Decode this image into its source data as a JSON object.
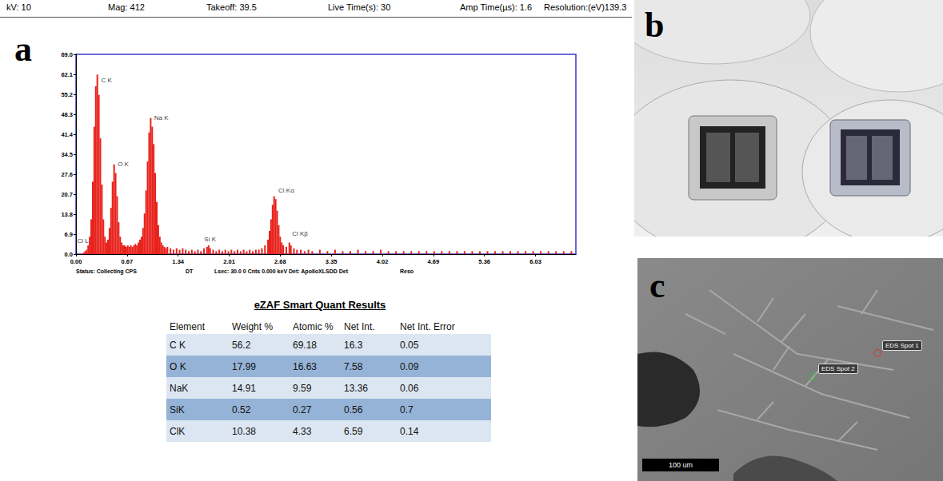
{
  "header": {
    "fields": [
      "kV: 10",
      "Mag: 412",
      "Takeoff: 39.5",
      "Live Time(s): 30",
      "Amp Time(µs): 1.6",
      "Resolution:(eV)139.3"
    ]
  },
  "panel_labels": [
    "a",
    "b",
    "c"
  ],
  "chart_data": {
    "type": "bar",
    "color": "#e8211b",
    "grid": false,
    "x": [
      0.1,
      0.12,
      0.14,
      0.16,
      0.18,
      0.2,
      0.22,
      0.24,
      0.26,
      0.28,
      0.3,
      0.32,
      0.34,
      0.36,
      0.38,
      0.4,
      0.42,
      0.44,
      0.46,
      0.48,
      0.5,
      0.52,
      0.54,
      0.56,
      0.58,
      0.6,
      0.62,
      0.64,
      0.66,
      0.68,
      0.7,
      0.72,
      0.74,
      0.76,
      0.78,
      0.8,
      0.82,
      0.84,
      0.86,
      0.88,
      0.9,
      0.92,
      0.94,
      0.96,
      0.98,
      1.0,
      1.02,
      1.04,
      1.06,
      1.08,
      1.1,
      1.12,
      1.14,
      1.16,
      1.18,
      1.2,
      1.24,
      1.28,
      1.32,
      1.36,
      1.4,
      1.44,
      1.48,
      1.52,
      1.56,
      1.6,
      1.64,
      1.68,
      1.72,
      1.74,
      1.76,
      1.8,
      1.84,
      1.88,
      1.92,
      1.96,
      2.0,
      2.04,
      2.08,
      2.12,
      2.16,
      2.2,
      2.24,
      2.28,
      2.32,
      2.36,
      2.4,
      2.44,
      2.48,
      2.52,
      2.54,
      2.56,
      2.58,
      2.6,
      2.62,
      2.64,
      2.66,
      2.68,
      2.7,
      2.72,
      2.76,
      2.8,
      2.82,
      2.86,
      2.9,
      2.95,
      3.0,
      3.05,
      3.1,
      3.2,
      3.3,
      3.4,
      3.5,
      3.6,
      3.7,
      3.8,
      3.9,
      4.0,
      4.1,
      4.2,
      4.3,
      4.4,
      4.5,
      4.6,
      4.7,
      4.8,
      4.9,
      5.0,
      5.1,
      5.2,
      5.3,
      5.4,
      5.5,
      5.6,
      5.7,
      5.8,
      5.9,
      6.0,
      6.1,
      6.2,
      6.3,
      6.4,
      6.5
    ],
    "values": [
      0.5,
      1,
      1.5,
      3,
      6,
      12,
      25,
      44,
      58,
      62,
      55,
      40,
      24,
      12,
      6,
      4,
      5,
      9,
      16,
      25,
      31,
      28,
      20,
      11,
      6,
      4,
      3,
      3,
      2.5,
      3,
      2.5,
      3,
      2.5,
      3,
      3.5,
      3,
      4,
      5,
      6,
      9,
      14,
      22,
      32,
      42,
      47,
      44,
      38,
      28,
      18,
      10,
      6,
      4,
      3,
      2.5,
      2,
      2.5,
      2,
      1.5,
      2,
      1.5,
      2,
      1.5,
      1,
      1.5,
      1,
      1.5,
      1,
      2,
      2.5,
      3,
      2,
      1.5,
      1,
      1.5,
      1,
      1.5,
      1,
      1.5,
      1,
      1.5,
      1,
      1.5,
      1,
      1.5,
      1,
      1.5,
      1.5,
      2,
      3,
      5,
      8,
      12,
      17,
      20,
      19,
      15,
      10,
      6,
      4,
      3,
      2.5,
      4,
      3,
      2,
      1.5,
      1.5,
      1,
      1.5,
      1,
      1.5,
      1,
      1.5,
      1,
      1,
      1.5,
      1,
      1,
      1.5,
      1,
      1,
      1,
      1,
      1,
      1,
      1,
      1,
      1,
      1,
      1,
      1,
      1,
      1,
      1,
      1,
      1,
      1,
      1,
      1,
      1,
      1,
      1,
      1,
      1
    ],
    "xlim": [
      0,
      6.56
    ],
    "ylim": [
      0,
      69
    ],
    "xticks": [
      {
        "value": 0,
        "label": "0.00"
      },
      0.67,
      1.34,
      2.01,
      2.68,
      3.35,
      4.02,
      4.69,
      5.36,
      6.03
    ],
    "yticks": [
      {
        "value": 0,
        "label": "0.0"
      },
      6.9,
      13.8,
      20.7,
      27.6,
      34.5,
      41.4,
      48.3,
      55.2,
      62.1,
      {
        "value": 69,
        "label": "69.0"
      }
    ],
    "annotations": [
      {
        "text": "C K",
        "x": 0.4,
        "y": 60
      },
      {
        "text": "O K",
        "x": 0.62,
        "y": 31
      },
      {
        "text": "Na K",
        "x": 1.12,
        "y": 47
      },
      {
        "text": "Si K",
        "x": 1.76,
        "y": 5
      },
      {
        "text": "Cl Kα",
        "x": 2.76,
        "y": 22
      },
      {
        "text": "Cl Kβ",
        "x": 2.94,
        "y": 7
      },
      {
        "text": "Cl L",
        "x": 0.09,
        "y": 4.5
      }
    ]
  },
  "status": [
    "Status: Collecting CPS",
    "DT",
    "Lsec: 30.0 0 Cnts  0.000 keV  Det: ApolloXLSDD Det",
    "Reso"
  ],
  "table": {
    "title": "eZAF Smart Quant Results",
    "columns": [
      "Element",
      "Weight %",
      "Atomic %",
      "Net Int.",
      "Net Int. Error"
    ],
    "rows": [
      [
        "C K",
        56.2,
        69.18,
        16.3,
        0.05
      ],
      [
        "O K",
        17.99,
        16.63,
        7.58,
        0.09
      ],
      [
        "NaK",
        14.91,
        9.59,
        13.36,
        0.06
      ],
      [
        "SiK",
        0.52,
        0.27,
        0.56,
        0.7
      ],
      [
        "ClK",
        10.38,
        4.33,
        6.59,
        0.14
      ]
    ]
  },
  "sem": {
    "spots": [
      "EDS Spot 1",
      "EDS Spot 2"
    ],
    "scale_bar": "100 um"
  }
}
